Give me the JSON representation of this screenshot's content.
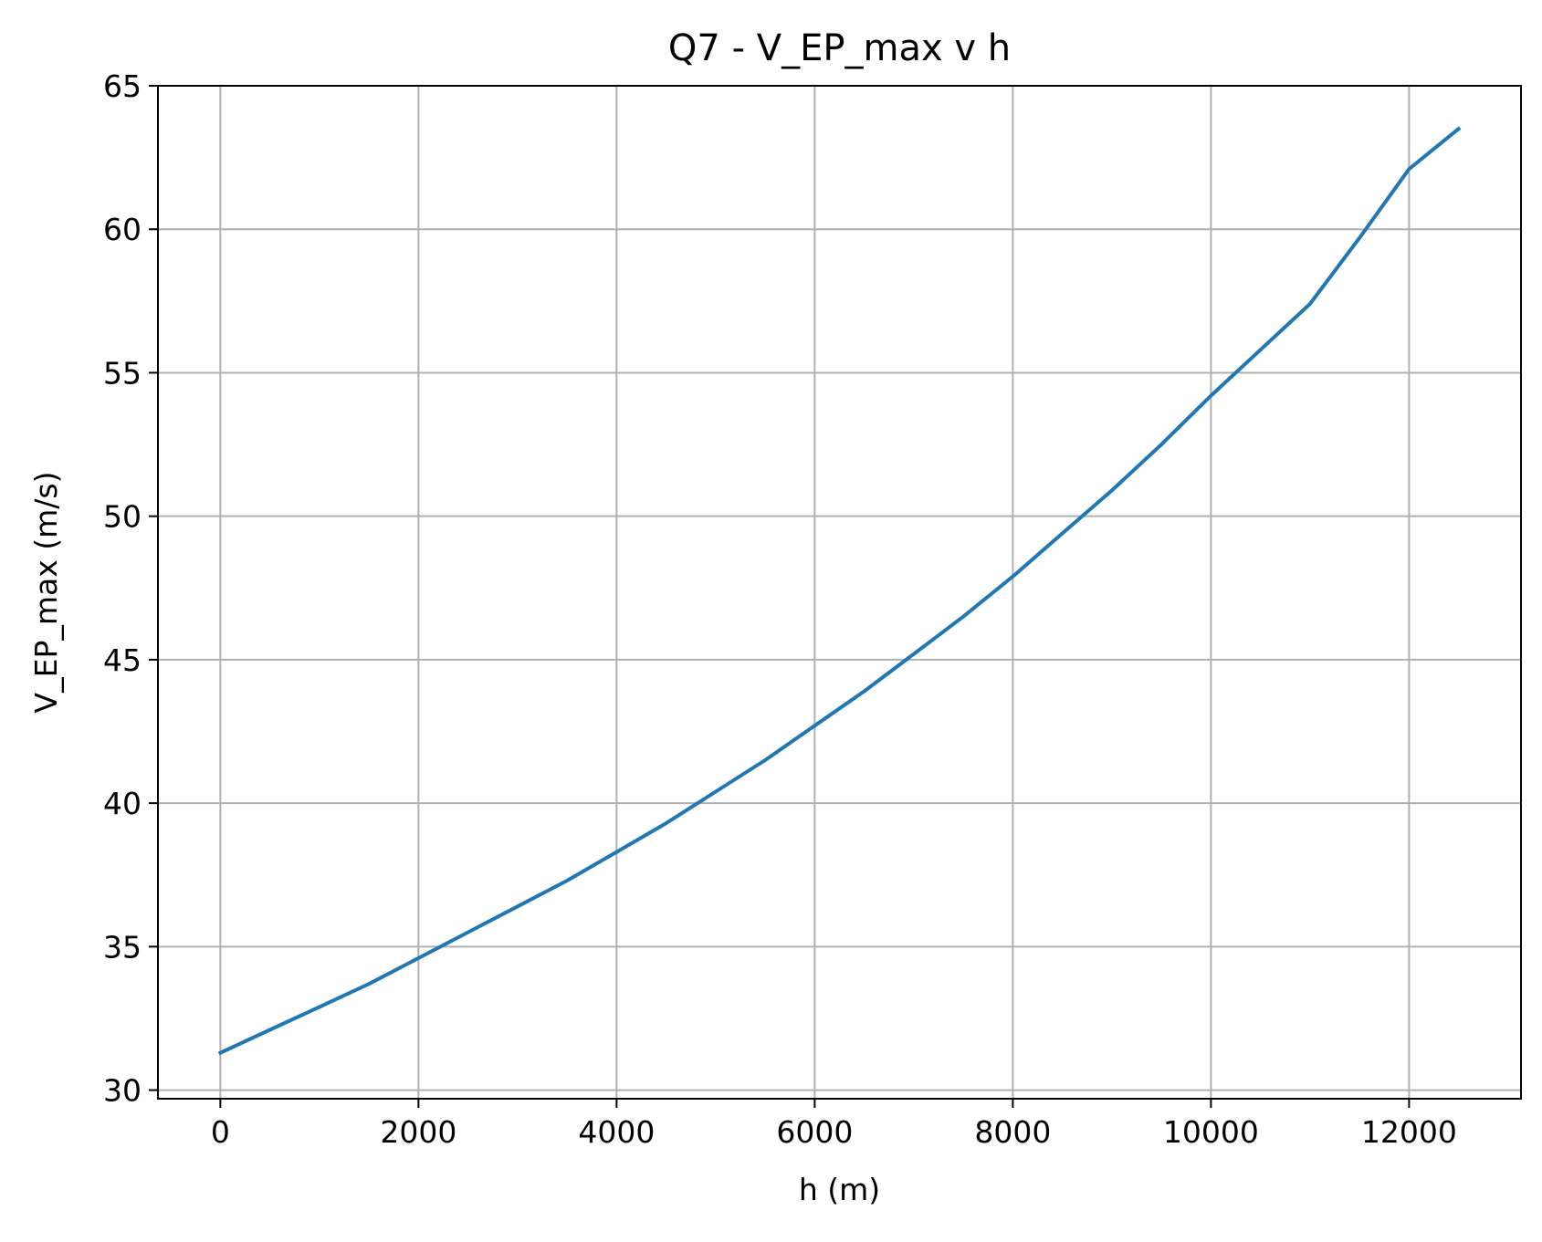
{
  "chart_data": {
    "type": "line",
    "title": "Q7 - V_EP_max v h",
    "xlabel": "h (m)",
    "ylabel": "V_EP_max (m/s)",
    "xlim": [
      -630,
      13130
    ],
    "ylim": [
      29.7,
      65
    ],
    "xticks": [
      0,
      2000,
      4000,
      6000,
      8000,
      10000,
      12000
    ],
    "yticks": [
      30,
      35,
      40,
      45,
      50,
      55,
      60,
      65
    ],
    "grid": true,
    "series": [
      {
        "color": "#1f77b4",
        "x": [
          0,
          500,
          1000,
          1500,
          2000,
          2500,
          3000,
          3500,
          4000,
          4500,
          5000,
          5500,
          6000,
          6500,
          7000,
          7500,
          8000,
          8500,
          9000,
          9500,
          10000,
          10500,
          11000,
          11500,
          12000,
          12500
        ],
        "y": [
          31.3,
          32.1,
          32.9,
          33.7,
          34.6,
          35.5,
          36.4,
          37.3,
          38.3,
          39.3,
          40.4,
          41.5,
          42.7,
          43.9,
          45.2,
          46.5,
          47.9,
          49.4,
          50.9,
          52.5,
          54.2,
          55.8,
          57.4,
          59.7,
          62.1,
          63.5
        ]
      }
    ]
  }
}
